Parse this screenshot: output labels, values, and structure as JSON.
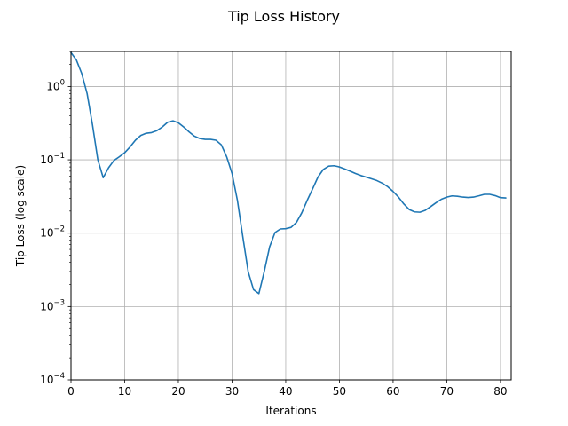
{
  "chart_data": {
    "type": "line",
    "title": "Tip Loss History",
    "xlabel": "Iterations",
    "ylabel": "Tip Loss (log scale)",
    "xlim": [
      0,
      82
    ],
    "ylim": [
      0.0001,
      3.0
    ],
    "yscale": "log",
    "grid": true,
    "x_ticks": [
      0,
      10,
      20,
      30,
      40,
      50,
      60,
      70,
      80
    ],
    "x_tick_labels": [
      "0",
      "10",
      "20",
      "30",
      "40",
      "50",
      "60",
      "70",
      "80"
    ],
    "y_ticks": [
      0.0001,
      0.001,
      0.01,
      0.1,
      1
    ],
    "y_tick_labels": [
      {
        "base": "10",
        "exp": "−4"
      },
      {
        "base": "10",
        "exp": "−3"
      },
      {
        "base": "10",
        "exp": "−2"
      },
      {
        "base": "10",
        "exp": "−1"
      },
      {
        "base": "10",
        "exp": "0"
      }
    ],
    "series": [
      {
        "color": "#1f77b4",
        "x": [
          0,
          1,
          2,
          3,
          4,
          5,
          6,
          7,
          8,
          9,
          10,
          11,
          12,
          13,
          14,
          15,
          16,
          17,
          18,
          19,
          20,
          21,
          22,
          23,
          24,
          25,
          26,
          27,
          28,
          29,
          30,
          31,
          32,
          33,
          34,
          35,
          36,
          37,
          38,
          39,
          40,
          41,
          42,
          43,
          44,
          45,
          46,
          47,
          48,
          49,
          50,
          51,
          52,
          53,
          54,
          55,
          56,
          57,
          58,
          59,
          60,
          61,
          62,
          63,
          64,
          65,
          66,
          67,
          68,
          69,
          70,
          71,
          72,
          73,
          74,
          75,
          76,
          77,
          78,
          79,
          80,
          81
        ],
        "y": [
          2.9,
          2.3,
          1.5,
          0.8,
          0.3,
          0.1,
          0.057,
          0.078,
          0.098,
          0.11,
          0.125,
          0.15,
          0.185,
          0.215,
          0.23,
          0.235,
          0.25,
          0.28,
          0.325,
          0.34,
          0.32,
          0.28,
          0.24,
          0.21,
          0.195,
          0.19,
          0.19,
          0.185,
          0.16,
          0.11,
          0.065,
          0.028,
          0.009,
          0.003,
          0.0017,
          0.0015,
          0.003,
          0.0065,
          0.0102,
          0.0114,
          0.0115,
          0.012,
          0.014,
          0.019,
          0.028,
          0.04,
          0.058,
          0.074,
          0.082,
          0.083,
          0.08,
          0.075,
          0.07,
          0.065,
          0.061,
          0.058,
          0.055,
          0.052,
          0.048,
          0.043,
          0.037,
          0.031,
          0.025,
          0.021,
          0.0195,
          0.0193,
          0.0205,
          0.023,
          0.026,
          0.029,
          0.031,
          0.0322,
          0.0318,
          0.031,
          0.0306,
          0.031,
          0.0323,
          0.0338,
          0.0338,
          0.0325,
          0.0305,
          0.0302
        ]
      }
    ]
  }
}
